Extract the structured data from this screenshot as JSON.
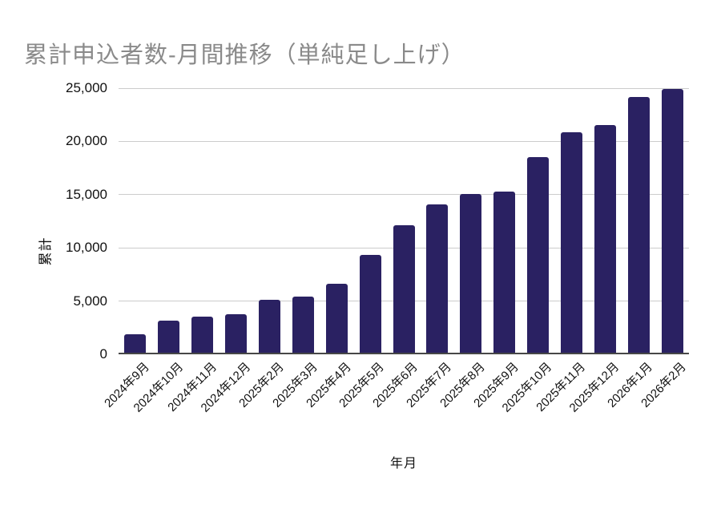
{
  "colors": {
    "bar": "#2a2162",
    "title": "#8a8a8a",
    "grid": "#cccccc",
    "axis_line": "#474747",
    "tick_text": "#111111"
  },
  "chart_data": {
    "type": "bar",
    "title": "累計申込者数-月間推移（単純足し上げ）",
    "xlabel": "年月",
    "ylabel": "累計",
    "categories": [
      "2024年9月",
      "2024年10月",
      "2024年11月",
      "2024年12月",
      "2025年2月",
      "2025年3月",
      "2025年4月",
      "2025年5月",
      "2025年6月",
      "2025年7月",
      "2025年8月",
      "2025年9月",
      "2025年10月",
      "2025年11月",
      "2025年12月",
      "2026年1月",
      "2026年2月"
    ],
    "values": [
      1700,
      3000,
      3400,
      3600,
      5000,
      5300,
      6500,
      9200,
      12000,
      13900,
      14900,
      15100,
      18400,
      20700,
      21400,
      24000,
      24800
    ],
    "ylim": [
      0,
      25000
    ],
    "ytick_interval": 5000,
    "ytick_labels": [
      "0",
      "5,000",
      "10,000",
      "15,000",
      "20,000",
      "25,000"
    ],
    "grid": true,
    "legend": false
  }
}
